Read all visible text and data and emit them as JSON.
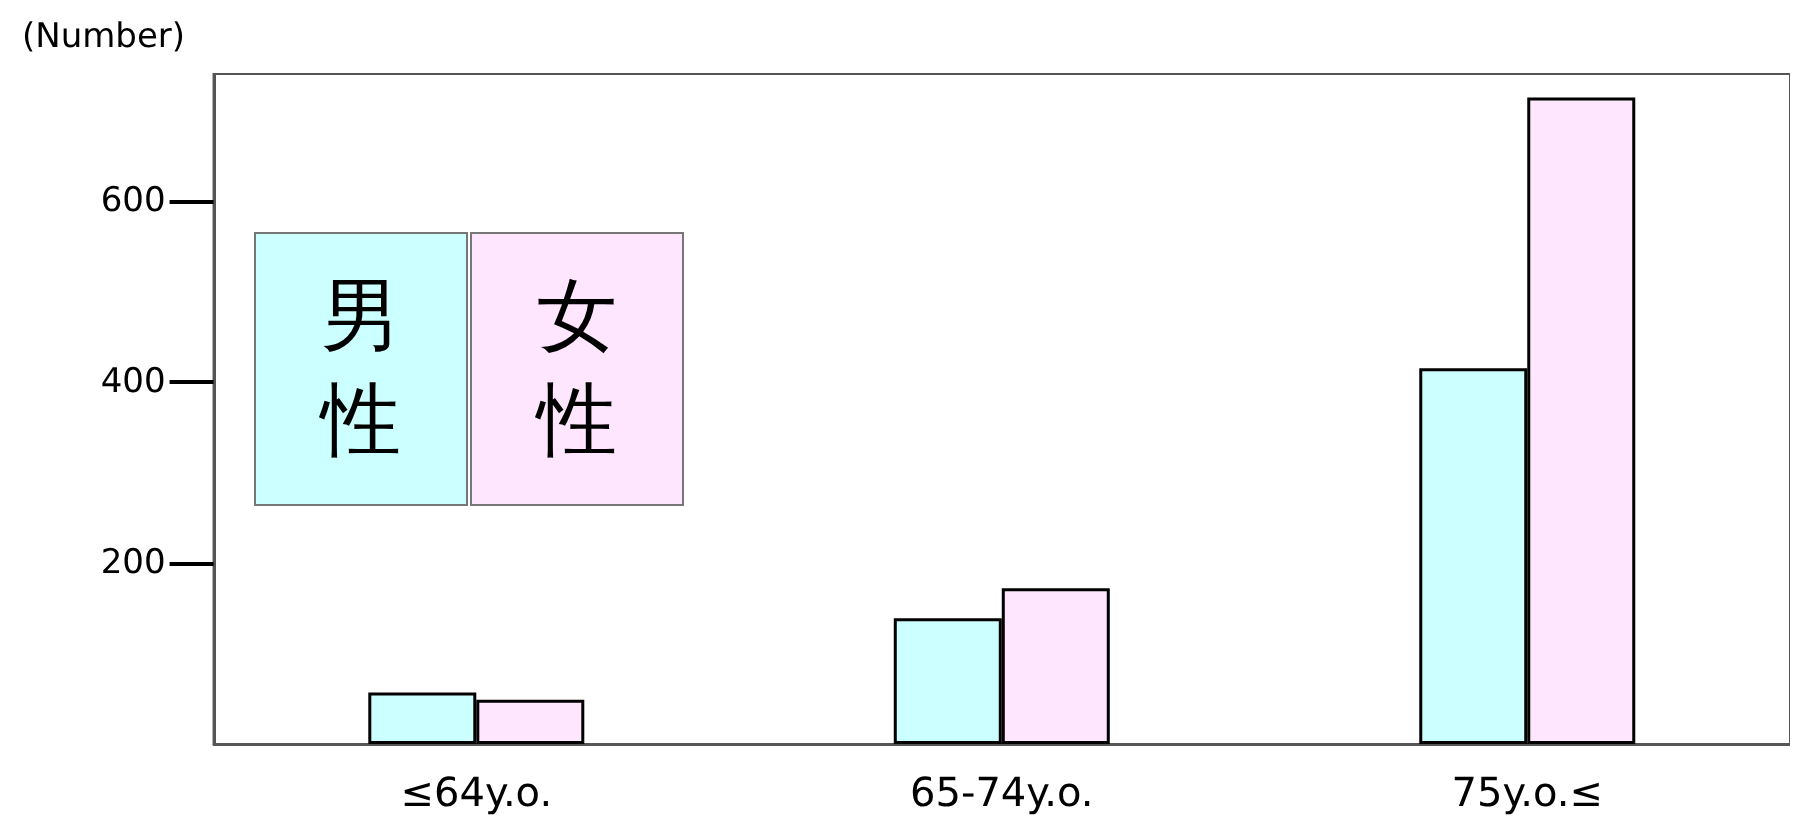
{
  "chart_data": {
    "type": "bar",
    "ylabel": "(Number)",
    "categories": [
      "≤64y.o.",
      "65-74y.o.",
      "75y.o.≤"
    ],
    "series": [
      {
        "name": "男性",
        "color": "#ccffff",
        "values": [
          57,
          139,
          415
        ]
      },
      {
        "name": "女性",
        "color": "#ffe6ff",
        "values": [
          49,
          172,
          714
        ]
      }
    ],
    "ylim": [
      0,
      740
    ],
    "yticks": [
      200,
      400,
      600
    ],
    "grid": false,
    "legend": "top left"
  }
}
